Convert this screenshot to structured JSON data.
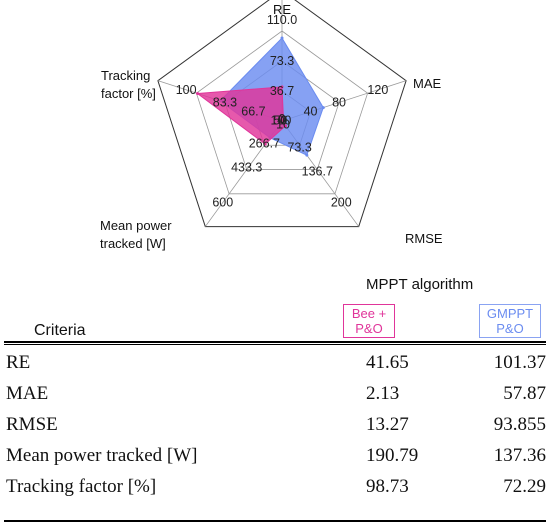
{
  "chart_data": {
    "type": "radar",
    "axes": [
      {
        "label": "RE",
        "max": 110,
        "ticks": [
          "0",
          "36.7",
          "73.3",
          "110.0"
        ]
      },
      {
        "label": "MAE",
        "max": 120,
        "ticks": [
          "0",
          "40",
          "80",
          "120"
        ]
      },
      {
        "label": "RMSE",
        "max": 200,
        "ticks": [
          "10",
          "73.3",
          "136.7",
          "200"
        ]
      },
      {
        "label": "Mean power tracked [W]",
        "max": 600,
        "ticks": [
          "100",
          "266.7",
          "433.3",
          "600"
        ]
      },
      {
        "label": "Tracking factor [%]",
        "max": 100,
        "ticks": [
          "50",
          "66.7",
          "83.3",
          "100"
        ]
      }
    ],
    "series": [
      {
        "name": "GMPPT P&O",
        "color": "#6b8cf0",
        "values": [
          101.37,
          57.87,
          93.855,
          137.36,
          72.29
        ]
      },
      {
        "name": "Bee + P&O",
        "color": "#e0359a",
        "values": [
          41.65,
          2.13,
          13.27,
          190.79,
          98.73
        ]
      }
    ]
  },
  "axis_titles": {
    "re": "RE",
    "mae": "MAE",
    "rmse": "RMSE",
    "power_l1": "Mean power",
    "power_l2": "tracked [W]",
    "tf_l1": "Tracking",
    "tf_l2": "factor [%]"
  },
  "table": {
    "group_header": "MPPT algorithm",
    "criteria_header": "Criteria",
    "bee_l1": "Bee +",
    "bee_l2": "P&O",
    "gm_l1": "GMPPT",
    "gm_l2": "P&O",
    "rows": [
      {
        "criterion": "RE",
        "bee": "41.65",
        "gm": "101.37"
      },
      {
        "criterion": "MAE",
        "bee": "2.13",
        "gm": "57.87"
      },
      {
        "criterion": "RMSE",
        "bee": "13.27",
        "gm": "93.855"
      },
      {
        "criterion": "Mean power tracked [W]",
        "bee": "190.79",
        "gm": "137.36"
      },
      {
        "criterion": "Tracking factor [%]",
        "bee": "98.73",
        "gm": "72.29"
      }
    ]
  }
}
